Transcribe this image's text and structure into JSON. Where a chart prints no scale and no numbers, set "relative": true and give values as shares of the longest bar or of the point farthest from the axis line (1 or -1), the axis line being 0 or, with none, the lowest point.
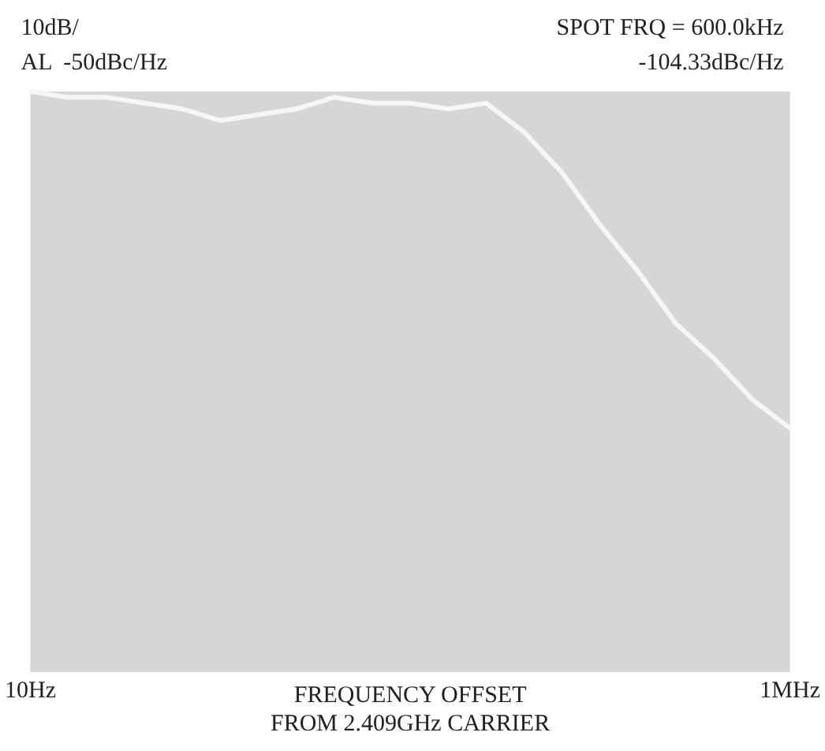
{
  "chart_data": {
    "type": "line",
    "xlabel": "FREQUENCY OFFSET\nFROM 2.409GHz CARRIER",
    "categories": [
      "10Hz",
      null,
      null,
      null,
      null,
      null,
      null,
      null,
      null,
      null,
      null,
      null,
      null,
      null,
      null,
      null,
      null,
      null,
      null,
      null,
      "1MHz"
    ],
    "series": [
      {
        "color": "#f6f6f6",
        "values": [
          1.0,
          0.99,
          0.99,
          0.98,
          0.97,
          0.95,
          0.96,
          0.97,
          0.99,
          0.98,
          0.98,
          0.97,
          0.98,
          0.93,
          0.86,
          0.77,
          0.69,
          0.6,
          0.54,
          0.47,
          0.42
        ]
      }
    ],
    "relative": true,
    "tick_labels": "x",
    "grid": false,
    "legend": false,
    "marker": "none",
    "line_style": "solid",
    "annotations": [
      "10dB/",
      "AL  -50dBc/Hz",
      "SPOT FRQ = 600.0kHz",
      "-104.33dBc/Hz"
    ]
  }
}
